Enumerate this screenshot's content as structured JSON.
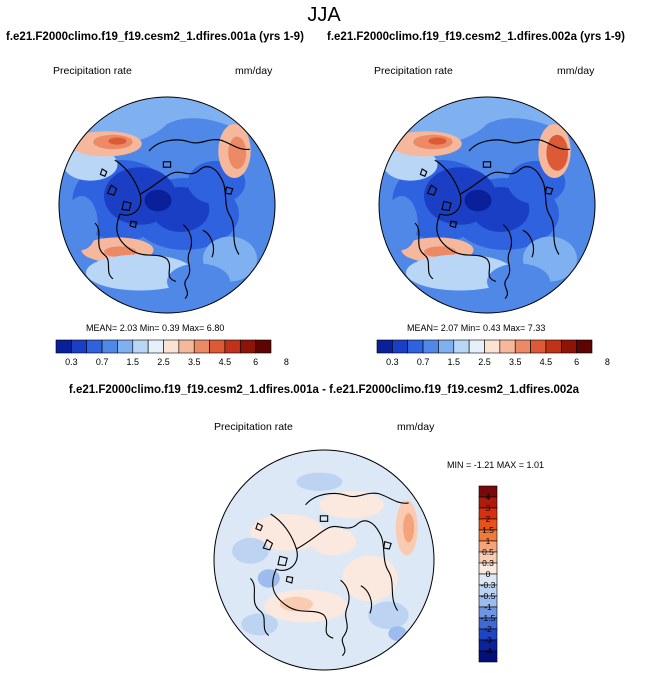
{
  "season": "JJA",
  "panels": [
    {
      "title": "f.e21.F2000climo.f19_f19.cesm2_1.dfires.001a (yrs 1-9)",
      "variable_label": "Precipitation rate",
      "units": "mm/day",
      "stats_text": "MEAN=  2.03  Min=  0.39  Max=  6.80"
    },
    {
      "title": "f.e21.F2000climo.f19_f19.cesm2_1.dfires.002a (yrs 1-9)",
      "variable_label": "Precipitation rate",
      "units": "mm/day",
      "stats_text": "MEAN=  2.07  Min=  0.43  Max=  7.33"
    }
  ],
  "diff_panel": {
    "title": "f.e21.F2000climo.f19_f19.cesm2_1.dfires.001a - f.e21.F2000climo.f19_f19.cesm2_1.dfires.002a",
    "variable_label": "Precipitation rate",
    "units": "mm/day",
    "stats_text": "MIN =  -1.21 MAX =   1.01"
  },
  "chart_data": [
    {
      "type": "heatmap",
      "projection": "north polar stereographic",
      "title": "f.e21.F2000climo.f19_f19.cesm2_1.dfires.001a (yrs 1-9)",
      "field": "Precipitation rate",
      "units": "mm/day",
      "mean": 2.03,
      "min": 0.39,
      "max": 6.8,
      "colorbar": {
        "orientation": "horizontal",
        "levels": [
          0.3,
          0.7,
          1.5,
          2.5,
          3.5,
          4.5,
          6,
          8
        ],
        "tick_labels": [
          "0.3",
          "0.7",
          "1.5",
          "2.5",
          "3.5",
          "4.5",
          "6",
          "8"
        ],
        "colors": [
          "#0a1f9a",
          "#1b3fc4",
          "#2e62de",
          "#5088e8",
          "#7fb0f0",
          "#b9d6f7",
          "#e6f0fb",
          "#fbe3d4",
          "#f6b89c",
          "#ed8a66",
          "#dc5a36",
          "#c0321a",
          "#8e1408",
          "#5e0503"
        ]
      }
    },
    {
      "type": "heatmap",
      "projection": "north polar stereographic",
      "title": "f.e21.F2000climo.f19_f19.cesm2_1.dfires.002a (yrs 1-9)",
      "field": "Precipitation rate",
      "units": "mm/day",
      "mean": 2.07,
      "min": 0.43,
      "max": 7.33,
      "colorbar": {
        "orientation": "horizontal",
        "levels": [
          0.3,
          0.7,
          1.5,
          2.5,
          3.5,
          4.5,
          6,
          8
        ],
        "tick_labels": [
          "0.3",
          "0.7",
          "1.5",
          "2.5",
          "3.5",
          "4.5",
          "6",
          "8"
        ],
        "colors": [
          "#0a1f9a",
          "#1b3fc4",
          "#2e62de",
          "#5088e8",
          "#7fb0f0",
          "#b9d6f7",
          "#e6f0fb",
          "#fbe3d4",
          "#f6b89c",
          "#ed8a66",
          "#dc5a36",
          "#c0321a",
          "#8e1408",
          "#5e0503"
        ]
      }
    },
    {
      "type": "heatmap",
      "projection": "north polar stereographic",
      "title": "f.e21.F2000climo.f19_f19.cesm2_1.dfires.001a - f.e21.F2000climo.f19_f19.cesm2_1.dfires.002a",
      "field": "Precipitation rate",
      "units": "mm/day",
      "min": -1.21,
      "max": 1.01,
      "colorbar": {
        "orientation": "vertical",
        "levels": [
          4,
          3,
          2,
          1.5,
          1,
          0.5,
          0.3,
          0,
          -0.3,
          -0.5,
          -1,
          -1.5,
          -2,
          -3,
          -4
        ],
        "tick_labels": [
          "4",
          "3",
          "2",
          "1.5",
          "1",
          "0.5",
          "0.3",
          "0",
          "-0.3",
          "-0.5",
          "-1",
          "-1.5",
          "-2",
          "-3",
          "-4"
        ],
        "colors": [
          "#7a0a0a",
          "#b01a0d",
          "#d6300f",
          "#e8501c",
          "#f07a3a",
          "#f5a37a",
          "#f9cbb3",
          "#fbe8de",
          "#dde8f6",
          "#bcd3f2",
          "#9dbbec",
          "#6f95e0",
          "#3f6ad6",
          "#1f44c3",
          "#0a22a0",
          "#04107a"
        ]
      }
    }
  ]
}
